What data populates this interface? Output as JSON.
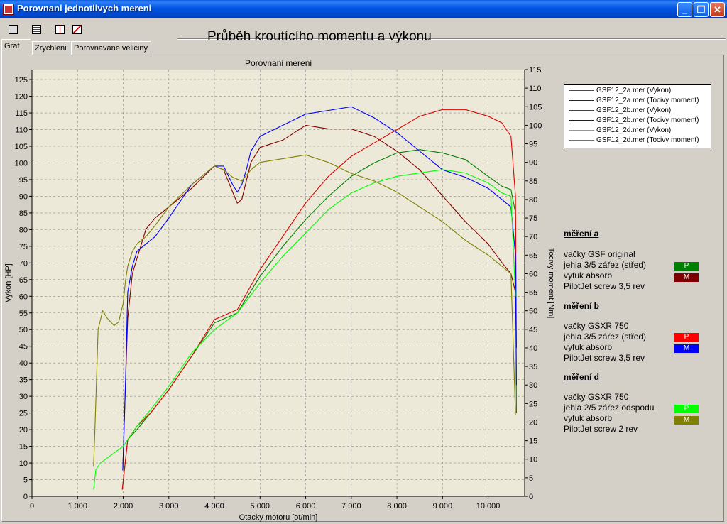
{
  "window": {
    "title": "Porovnani jednotlivych mereni",
    "buttons": [
      "_",
      "❐",
      "✕"
    ]
  },
  "toolbar": {
    "icons": [
      "print-icon",
      "print-preview-icon",
      "table-icon",
      "chart-icon"
    ]
  },
  "heading": "Průběh kroutícího momentu a výkonu",
  "tabs": [
    {
      "label": "Graf",
      "active": true
    },
    {
      "label": "Zrychleni",
      "active": false
    },
    {
      "label": "Porovnavane veliciny",
      "active": false
    }
  ],
  "chart_data": {
    "type": "line",
    "title": "Porovnani mereni",
    "xlabel": "Otacky motoru [ot/min]",
    "ylabel": "Vykon [HP]",
    "y2label": "Tocivy moment [Nm]",
    "xlim": [
      0,
      10800
    ],
    "ylim": [
      0,
      128
    ],
    "y2lim": [
      0,
      115
    ],
    "x_ticks": [
      0,
      1000,
      2000,
      3000,
      4000,
      5000,
      6000,
      7000,
      8000,
      9000,
      10000
    ],
    "x_tick_labels": [
      "0",
      "1 000",
      "2 000",
      "3 000",
      "4 000",
      "5 000",
      "6 000",
      "7 000",
      "8 000",
      "9 000",
      "10 000"
    ],
    "y_ticks": [
      0,
      5,
      10,
      15,
      20,
      25,
      30,
      35,
      40,
      45,
      50,
      55,
      60,
      65,
      70,
      75,
      80,
      85,
      90,
      95,
      100,
      105,
      110,
      115,
      120,
      125
    ],
    "y2_ticks": [
      0,
      5,
      10,
      15,
      20,
      25,
      30,
      35,
      40,
      45,
      50,
      55,
      60,
      65,
      70,
      75,
      80,
      85,
      90,
      95,
      100,
      105,
      110,
      115
    ],
    "grid": true,
    "legend_position": "top-right",
    "series": [
      {
        "name": "GSF12_2a.mer  (Vykon)",
        "color": "#008000",
        "axis": "left",
        "x": [
          1980,
          2100,
          2300,
          2600,
          3000,
          3500,
          4000,
          4500,
          5000,
          5500,
          6000,
          6500,
          7000,
          7500,
          8000,
          8500,
          9000,
          9500,
          10000,
          10300,
          10500,
          10600,
          10620
        ],
        "y": [
          2,
          17,
          20,
          25,
          32,
          42,
          52,
          55,
          66,
          75,
          83,
          90,
          96,
          100,
          103,
          104,
          103,
          101,
          96,
          93,
          92,
          85,
          25
        ]
      },
      {
        "name": "GSF12_2a.mer  (Tocivy moment)",
        "color": "#800000",
        "axis": "right",
        "x": [
          1990,
          2050,
          2100,
          2200,
          2300,
          2500,
          2700,
          3000,
          3500,
          4000,
          4200,
          4400,
          4500,
          4600,
          4700,
          4800,
          5000,
          5500,
          6000,
          6500,
          7000,
          7500,
          8000,
          8500,
          9000,
          9500,
          10000,
          10300,
          10500,
          10600,
          10620
        ],
        "y": [
          7,
          30,
          48,
          60,
          64,
          72,
          75,
          78,
          83,
          89,
          88,
          82,
          79,
          80,
          85,
          90,
          94,
          96,
          100,
          99,
          99,
          97,
          93,
          88,
          81,
          74,
          68,
          63,
          60,
          55,
          40
        ]
      },
      {
        "name": "GSF12_2b.mer  (Vykon)",
        "color": "#e00000",
        "axis": "left",
        "x": [
          1980,
          2100,
          2300,
          2600,
          3000,
          3500,
          4000,
          4500,
          5000,
          5500,
          6000,
          6500,
          7000,
          7500,
          8000,
          8500,
          9000,
          9500,
          10000,
          10300,
          10500,
          10600,
          10620
        ],
        "y": [
          2,
          17,
          21,
          25,
          32,
          42,
          53,
          56,
          68,
          78,
          88,
          96,
          102,
          106,
          110,
          114,
          116,
          116,
          114,
          112,
          108,
          90,
          45
        ]
      },
      {
        "name": "GSF12_2b.mer  (Tocivy moment)",
        "color": "#0000ff",
        "axis": "right",
        "x": [
          1990,
          2050,
          2100,
          2200,
          2300,
          2500,
          2700,
          3000,
          3500,
          4000,
          4200,
          4400,
          4500,
          4600,
          4700,
          4800,
          5000,
          5500,
          6000,
          6500,
          7000,
          7500,
          8000,
          8500,
          9000,
          9500,
          10000,
          10300,
          10500,
          10600,
          10620
        ],
        "y": [
          7,
          30,
          55,
          62,
          66,
          68,
          70,
          75,
          84,
          89,
          89,
          84,
          82,
          84,
          88,
          93,
          97,
          100,
          103,
          104,
          105,
          102,
          98,
          93,
          88,
          86,
          83,
          80,
          78,
          65,
          30
        ]
      },
      {
        "name": "GSF12_2d.mer  (Vykon)",
        "color": "#00ff00",
        "axis": "left",
        "x": [
          1350,
          1400,
          1500,
          1700,
          1900,
          2000,
          2100,
          2300,
          2600,
          3000,
          3500,
          4000,
          4500,
          5000,
          5500,
          6000,
          6500,
          7000,
          7500,
          8000,
          8500,
          9000,
          9500,
          10000,
          10300,
          10500,
          10600
        ],
        "y": [
          2,
          8,
          10,
          12,
          14,
          15,
          17,
          21,
          26,
          33,
          43,
          50,
          55,
          64,
          72,
          79,
          86,
          91,
          94,
          96,
          97,
          98,
          97,
          94,
          91,
          90,
          60
        ]
      },
      {
        "name": "GSF12_2d.mer  (Tocivy moment)",
        "color": "#808000",
        "axis": "right",
        "x": [
          1350,
          1380,
          1450,
          1550,
          1650,
          1800,
          1900,
          2000,
          2050,
          2100,
          2200,
          2300,
          2500,
          2700,
          3000,
          3500,
          4000,
          4200,
          4400,
          4600,
          4800,
          5000,
          5500,
          6000,
          6500,
          7000,
          7500,
          8000,
          8500,
          9000,
          9500,
          10000,
          10300,
          10500,
          10600
        ],
        "y": [
          8,
          18,
          45,
          50,
          48,
          46,
          47,
          52,
          58,
          62,
          66,
          68,
          70,
          73,
          78,
          84,
          89,
          88,
          86,
          85,
          88,
          90,
          91,
          92,
          90,
          87,
          85,
          82,
          78,
          74,
          69,
          65,
          62,
          60,
          22
        ]
      }
    ]
  },
  "legend_box": [
    {
      "label": "GSF12_2a.mer  (Vykon)",
      "color": "#008000"
    },
    {
      "label": "GSF12_2a.mer  (Tocivy moment)",
      "color": "#800000"
    },
    {
      "label": "GSF12_2b.mer  (Vykon)",
      "color": "#e00000"
    },
    {
      "label": "GSF12_2b.mer  (Tocivy moment)",
      "color": "#0000ff"
    },
    {
      "label": "GSF12_2d.mer  (Vykon)",
      "color": "#00ff00"
    },
    {
      "label": "GSF12_2d.mer  (Tocivy moment)",
      "color": "#808000"
    }
  ],
  "notes": [
    {
      "heading": "měření a",
      "lines": [
        "vačky GSF original",
        "jehla 3/5 zářez (střed)",
        "vyfuk absorb",
        "PilotJet screw 3,5 rev"
      ],
      "badges": [
        {
          "label": "P",
          "color": "#008000"
        },
        {
          "label": "M",
          "color": "#800000"
        }
      ]
    },
    {
      "heading": "měření b",
      "lines": [
        "vačky GSXR 750",
        "jehla 3/5 zářez (střed)",
        "vyfuk absorb",
        "PilotJet screw 3,5 rev"
      ],
      "badges": [
        {
          "label": "P",
          "color": "#ff0000"
        },
        {
          "label": "M",
          "color": "#0000ff"
        }
      ]
    },
    {
      "heading": "měření d",
      "lines": [
        "vačky GSXR 750",
        "jehla 2/5 zářez odspodu",
        "vyfuk absorb",
        "PilotJet screw 2 rev"
      ],
      "badges": [
        {
          "label": "P",
          "color": "#00ff00"
        },
        {
          "label": "M",
          "color": "#808000"
        }
      ]
    }
  ]
}
